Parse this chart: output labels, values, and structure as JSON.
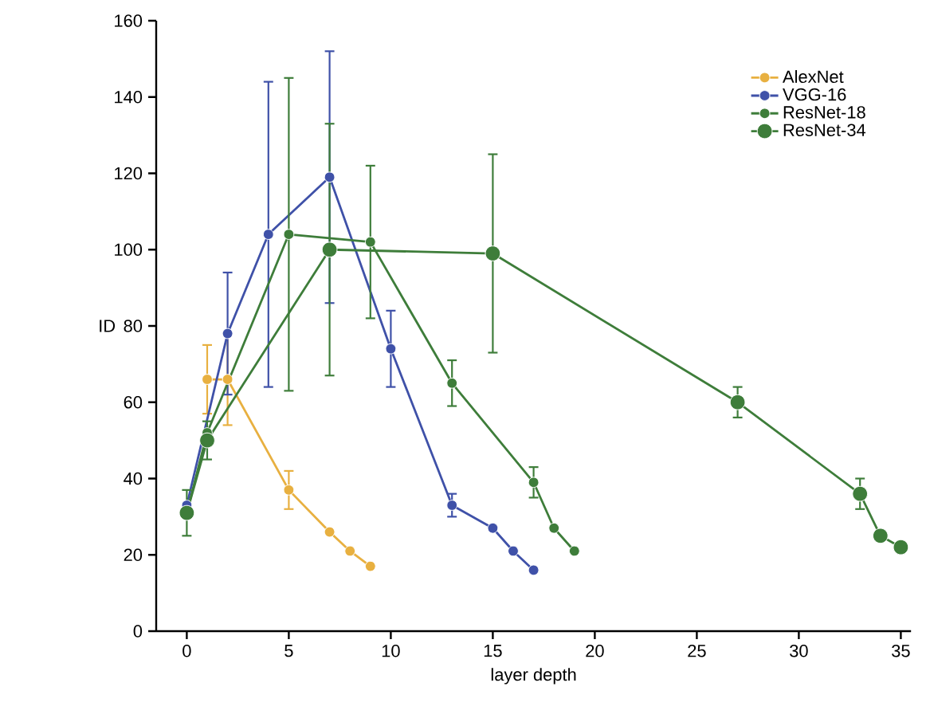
{
  "chart_data": {
    "type": "line",
    "xlabel": "layer depth",
    "ylabel": "ID",
    "xlim": [
      -1.5,
      35.5
    ],
    "ylim": [
      0,
      160
    ],
    "xticks": [
      0,
      5,
      10,
      15,
      20,
      25,
      30,
      35
    ],
    "yticks": [
      0,
      20,
      40,
      60,
      80,
      100,
      120,
      140,
      160
    ],
    "grid": false,
    "legend": "top right",
    "marker": "circle",
    "line_style": "solid",
    "series": [
      {
        "name": "AlexNet",
        "color": "#e8b040",
        "x": [
          1,
          2,
          5,
          7,
          8,
          9
        ],
        "values": [
          66,
          66,
          37,
          26,
          21,
          17
        ],
        "errors": [
          9,
          12,
          5,
          null,
          null,
          null
        ]
      },
      {
        "name": "VGG-16",
        "color": "#3f51a8",
        "x": [
          0,
          1,
          2,
          4,
          7,
          10,
          13,
          15,
          16,
          17
        ],
        "values": [
          33,
          null,
          78,
          104,
          119,
          74,
          33,
          27,
          21,
          16
        ],
        "errors": [
          null,
          null,
          16,
          40,
          33,
          10,
          3,
          null,
          null,
          null
        ]
      },
      {
        "name": "ResNet-18",
        "color": "#3e7d3a",
        "x": [
          0,
          1,
          5,
          9,
          13,
          17,
          18,
          19
        ],
        "values": [
          31,
          52,
          104,
          102,
          65,
          39,
          27,
          21
        ],
        "errors": [
          null,
          null,
          41,
          20,
          6,
          4,
          null,
          null
        ]
      },
      {
        "name": "ResNet-34",
        "color": "#3e7d3a",
        "x": [
          0,
          1,
          7,
          15,
          27,
          33,
          34,
          35
        ],
        "values": [
          31,
          50,
          100,
          99,
          60,
          36,
          25,
          22
        ],
        "errors": [
          6,
          5,
          33,
          26,
          4,
          4,
          null,
          null
        ]
      }
    ]
  }
}
